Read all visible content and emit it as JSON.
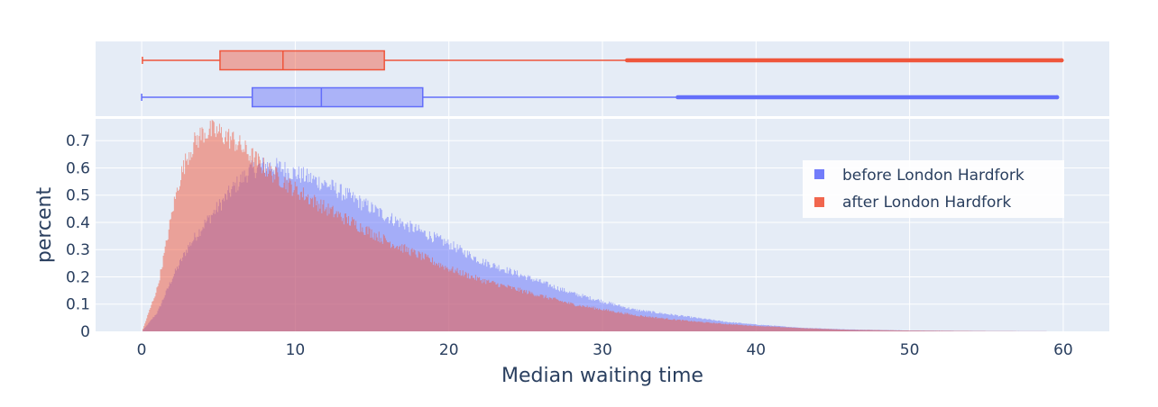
{
  "chart_data": {
    "type": "histogram",
    "xlabel": "Median waiting time",
    "ylabel": "percent",
    "xlim": [
      -3,
      63
    ],
    "ylim": [
      0,
      0.78
    ],
    "xticks": [
      0,
      10,
      20,
      30,
      40,
      50,
      60
    ],
    "yticks": [
      0,
      0.1,
      0.2,
      0.3,
      0.4,
      0.5,
      0.6,
      0.7
    ],
    "ytick_labels": [
      "0",
      "0.1",
      "0.2",
      "0.3",
      "0.4",
      "0.5",
      "0.6",
      "0.7"
    ],
    "legend_position": "top-right",
    "series": [
      {
        "name": "before London Hardfork",
        "color": "#636efa",
        "histogram": {
          "x": [
            0,
            1,
            2,
            3,
            4,
            5,
            6,
            7,
            8,
            9,
            10,
            12,
            14,
            16,
            18,
            20,
            22,
            24,
            26,
            28,
            30,
            32,
            34,
            36,
            38,
            40,
            43,
            46,
            50,
            55,
            60
          ],
          "y": [
            0,
            0.07,
            0.2,
            0.31,
            0.39,
            0.46,
            0.53,
            0.59,
            0.61,
            0.6,
            0.58,
            0.54,
            0.48,
            0.42,
            0.37,
            0.32,
            0.26,
            0.22,
            0.18,
            0.14,
            0.11,
            0.08,
            0.065,
            0.05,
            0.035,
            0.025,
            0.013,
            0.007,
            0.003,
            0.001,
            0
          ]
        },
        "box": {
          "min": 0,
          "q1": 7.2,
          "median": 11.7,
          "q3": 18.3,
          "upper_fence": 34.9,
          "max": 59.6
        }
      },
      {
        "name": "after London Hardfork",
        "color": "#ef553b",
        "histogram": {
          "x": [
            0,
            1,
            1.5,
            2,
            2.5,
            3,
            3.5,
            4,
            4.5,
            5,
            6,
            7,
            8,
            10,
            12,
            14,
            16,
            18,
            20,
            22,
            24,
            26,
            28,
            30,
            32,
            34,
            36,
            38,
            40,
            43,
            46,
            50,
            55,
            60
          ],
          "y": [
            0,
            0.16,
            0.3,
            0.45,
            0.57,
            0.65,
            0.7,
            0.73,
            0.735,
            0.73,
            0.7,
            0.65,
            0.6,
            0.52,
            0.45,
            0.39,
            0.33,
            0.28,
            0.23,
            0.19,
            0.16,
            0.13,
            0.1,
            0.08,
            0.06,
            0.047,
            0.036,
            0.027,
            0.02,
            0.012,
            0.006,
            0.003,
            0.001,
            0
          ]
        },
        "box": {
          "min": 0.05,
          "q1": 5.1,
          "median": 9.2,
          "q3": 15.8,
          "upper_fence": 31.6,
          "max": 59.9
        }
      }
    ]
  }
}
